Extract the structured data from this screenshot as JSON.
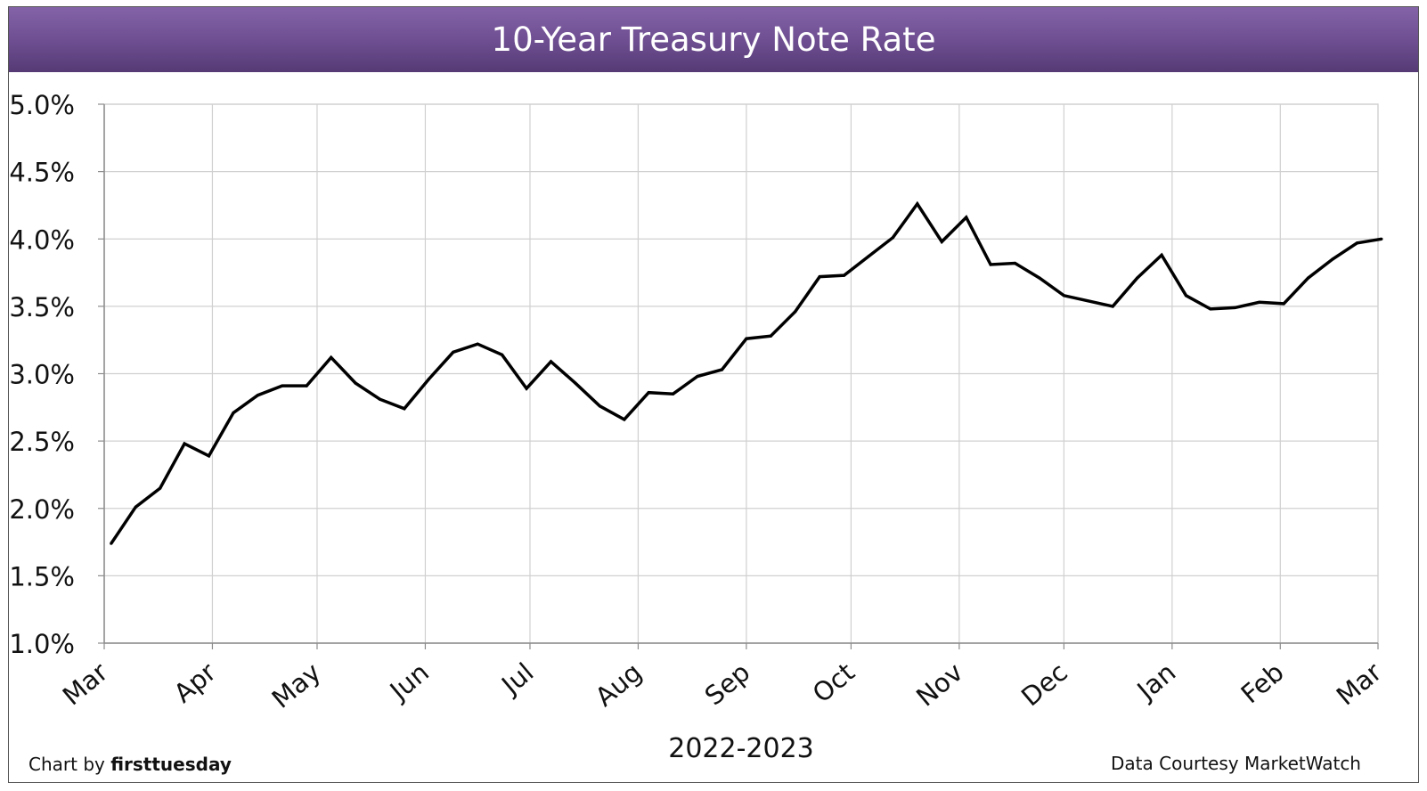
{
  "chart_data": {
    "type": "line",
    "title": "10-Year Treasury Note Rate",
    "xlabel": "2022-2023",
    "ylabel": "",
    "ylim": [
      1.0,
      5.0
    ],
    "yticks": [
      "1.0%",
      "1.5%",
      "2.0%",
      "2.5%",
      "3.0%",
      "3.5%",
      "4.0%",
      "4.5%",
      "5.0%"
    ],
    "xticks": [
      "Mar",
      "Apr",
      "May",
      "Jun",
      "Jul",
      "Aug",
      "Sep",
      "Oct",
      "Nov",
      "Dec",
      "Jan",
      "Feb",
      "Mar"
    ],
    "grid": true,
    "legend": "none",
    "line_color": "#000000",
    "series": [
      {
        "x": [
          "2022-03-03",
          "2022-03-10",
          "2022-03-17",
          "2022-03-24",
          "2022-03-31",
          "2022-04-07",
          "2022-04-14",
          "2022-04-21",
          "2022-04-28",
          "2022-05-05",
          "2022-05-12",
          "2022-05-19",
          "2022-05-26",
          "2022-06-02",
          "2022-06-09",
          "2022-06-16",
          "2022-06-23",
          "2022-06-30",
          "2022-07-07",
          "2022-07-14",
          "2022-07-21",
          "2022-07-28",
          "2022-08-04",
          "2022-08-11",
          "2022-08-18",
          "2022-08-25",
          "2022-09-01",
          "2022-09-08",
          "2022-09-15",
          "2022-09-22",
          "2022-09-29",
          "2022-10-06",
          "2022-10-13",
          "2022-10-20",
          "2022-10-27",
          "2022-11-03",
          "2022-11-10",
          "2022-11-17",
          "2022-11-24",
          "2022-12-01",
          "2022-12-15",
          "2022-12-22",
          "2022-12-29",
          "2023-01-05",
          "2023-01-12",
          "2023-01-19",
          "2023-01-26",
          "2023-02-02",
          "2023-02-09",
          "2023-02-16",
          "2023-02-23",
          "2023-03-02"
        ],
        "values": [
          1.74,
          2.01,
          2.15,
          2.48,
          2.39,
          2.71,
          2.84,
          2.91,
          2.91,
          3.12,
          2.93,
          2.81,
          2.74,
          2.96,
          3.16,
          3.22,
          3.14,
          2.89,
          3.09,
          2.93,
          2.76,
          2.66,
          2.86,
          2.85,
          2.98,
          3.03,
          3.26,
          3.28,
          3.46,
          3.72,
          3.73,
          3.87,
          4.01,
          4.26,
          3.98,
          4.16,
          3.81,
          3.82,
          3.71,
          3.58,
          3.5,
          3.71,
          3.88,
          3.58,
          3.48,
          3.49,
          3.53,
          3.52,
          3.71,
          3.85,
          3.97,
          4.0
        ]
      }
    ]
  },
  "footer": {
    "prefix": "Chart by ",
    "brand": "firsttuesday",
    "source": "Data Courtesy MarketWatch"
  }
}
